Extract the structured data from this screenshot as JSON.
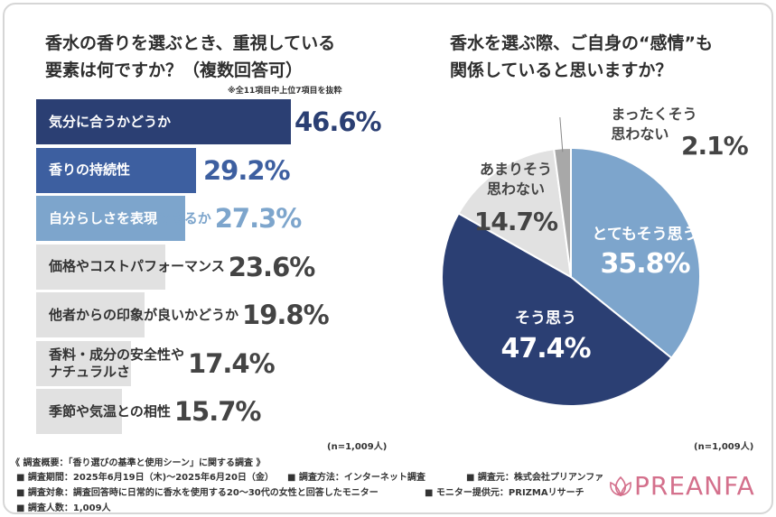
{
  "left_chart": {
    "title_line1": "香水の香りを選ぶとき、重視している",
    "title_line2": "要素は何ですか？（複数回答可）",
    "subnote": "※全11項目中上位7項目を抜粋",
    "n_note": "(n=1,009人)"
  },
  "right_chart": {
    "title_line1": "香水を選ぶ際、ご自身の“感情”も",
    "title_line2": "関係していると思いますか？",
    "n_note": "(n=1,009人)"
  },
  "chart_data": [
    {
      "type": "bar",
      "orientation": "horizontal",
      "title": "香水の香りを選ぶとき、重視している要素は何ですか？（複数回答可）",
      "categories": [
        "気分に合うかどうか",
        "香りの持続性",
        "自分らしさを表現できるか",
        "価格やコストパフォーマンス",
        "他者からの印象が良いかどうか",
        "香料・成分の安全性やナチュラルさ",
        "季節や気温との相性"
      ],
      "label_lines": [
        [
          "気分に合うかどうか"
        ],
        [
          "香りの持続性"
        ],
        [
          "自分らしさを表現できるか"
        ],
        [
          "価格やコストパフォーマンス"
        ],
        [
          "他者からの印象が良いかどうか"
        ],
        [
          "香料・成分の安全性や",
          "ナチュラルさ"
        ],
        [
          "季節や気温との相性"
        ]
      ],
      "values": [
        46.6,
        29.2,
        27.3,
        23.6,
        19.8,
        17.4,
        15.7
      ],
      "value_labels": [
        "46.6%",
        "29.2%",
        "27.3%",
        "23.6%",
        "19.8%",
        "17.4%",
        "15.7%"
      ],
      "unit": "%",
      "xlim": [
        0,
        100
      ]
    },
    {
      "type": "pie",
      "title": "香水を選ぶ際、ご自身の“感情”も関係していると思いますか？",
      "slices": [
        {
          "label": "とてもそう思う",
          "label_lines": [
            "とてもそう思う"
          ],
          "value": 35.8,
          "value_label": "35.8%"
        },
        {
          "label": "そう思う",
          "label_lines": [
            "そう思う"
          ],
          "value": 47.4,
          "value_label": "47.4%"
        },
        {
          "label": "あまりそう思わない",
          "label_lines": [
            "あまりそう",
            "思わない"
          ],
          "value": 14.7,
          "value_label": "14.7%"
        },
        {
          "label": "まったくそう思わない",
          "label_lines": [
            "まったくそう",
            "思わない"
          ],
          "value": 2.1,
          "value_label": "2.1%"
        }
      ]
    }
  ],
  "colors": {
    "dark_navy": "#2b3f73",
    "mid_blue": "#3d5fa0",
    "light_blue": "#7da5cc",
    "light_gray": "#e1e1e1",
    "gray": "#a8a8a8",
    "pink": "#d4708c"
  },
  "survey": {
    "overview": "《 調査概要：「香り選びの基準と使用シーン」に関する調査 》",
    "period": "■ 調査期間：2025年6月19日（木)〜2025年6月20日（金）",
    "method": "■ 調査方法：インターネット調査",
    "source": "■ 調査元：株式会社プリアンファ",
    "target": "■ 調査対象：調査回答時に日常的に香水を使用する20〜30代の女性と回答したモニター",
    "provider": "■ モニター提供元：PRIZMAリサーチ",
    "count": "■ 調査人数：1,009人"
  },
  "logo": {
    "text": "PREANFA",
    "icon": "lotus-icon"
  }
}
